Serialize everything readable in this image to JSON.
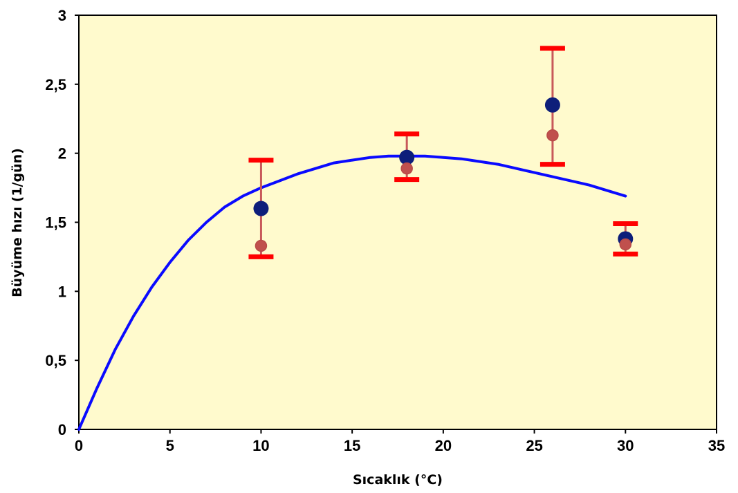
{
  "chart_data": {
    "type": "scatter",
    "xlabel": "Sıcaklık (°C)",
    "ylabel": "Büyüme hızı (1/gün)",
    "xlim": [
      0,
      35
    ],
    "ylim": [
      0,
      3
    ],
    "x_ticks": [
      0,
      5,
      10,
      15,
      20,
      25,
      30,
      35
    ],
    "y_ticks": [
      0,
      0.5,
      1,
      1.5,
      2,
      2.5,
      3
    ],
    "x_tick_labels": [
      "0",
      "5",
      "10",
      "15",
      "20",
      "25",
      "30",
      "35"
    ],
    "y_tick_labels": [
      "0",
      "0,5",
      "1",
      "1,5",
      "2",
      "2,5",
      "3"
    ],
    "grid": false,
    "plot_background": "#fffacd",
    "series": [
      {
        "kind": "points",
        "color": "#0d1e7a",
        "points": [
          {
            "x": 10,
            "y": 1.6
          },
          {
            "x": 18,
            "y": 1.97
          },
          {
            "x": 26,
            "y": 2.35
          },
          {
            "x": 30,
            "y": 1.38
          }
        ]
      },
      {
        "kind": "points-with-error-bars",
        "color": "#c0504d",
        "error_bar_color": "#c8595a",
        "cap_color": "#ff0000",
        "points": [
          {
            "x": 10,
            "y": 1.33,
            "low": 1.25,
            "high": 1.95
          },
          {
            "x": 18,
            "y": 1.89,
            "low": 1.81,
            "high": 2.14
          },
          {
            "x": 26,
            "y": 2.13,
            "low": 1.92,
            "high": 2.76
          },
          {
            "x": 30,
            "y": 1.34,
            "low": 1.27,
            "high": 1.49
          }
        ]
      },
      {
        "kind": "line",
        "color": "#0a0aff",
        "points": [
          {
            "x": 0,
            "y": 0
          },
          {
            "x": 1,
            "y": 0.3
          },
          {
            "x": 2,
            "y": 0.58
          },
          {
            "x": 3,
            "y": 0.82
          },
          {
            "x": 4,
            "y": 1.03
          },
          {
            "x": 5,
            "y": 1.21
          },
          {
            "x": 6,
            "y": 1.37
          },
          {
            "x": 7,
            "y": 1.5
          },
          {
            "x": 8,
            "y": 1.61
          },
          {
            "x": 9,
            "y": 1.69
          },
          {
            "x": 10,
            "y": 1.75
          },
          {
            "x": 11,
            "y": 1.8
          },
          {
            "x": 12,
            "y": 1.85
          },
          {
            "x": 13,
            "y": 1.89
          },
          {
            "x": 14,
            "y": 1.93
          },
          {
            "x": 15,
            "y": 1.95
          },
          {
            "x": 16,
            "y": 1.97
          },
          {
            "x": 17,
            "y": 1.98
          },
          {
            "x": 18,
            "y": 1.98
          },
          {
            "x": 19,
            "y": 1.98
          },
          {
            "x": 20,
            "y": 1.97
          },
          {
            "x": 21,
            "y": 1.96
          },
          {
            "x": 22,
            "y": 1.94
          },
          {
            "x": 23,
            "y": 1.92
          },
          {
            "x": 24,
            "y": 1.89
          },
          {
            "x": 25,
            "y": 1.86
          },
          {
            "x": 26,
            "y": 1.83
          },
          {
            "x": 27,
            "y": 1.8
          },
          {
            "x": 28,
            "y": 1.77
          },
          {
            "x": 29,
            "y": 1.73
          },
          {
            "x": 30,
            "y": 1.69
          }
        ]
      }
    ]
  }
}
